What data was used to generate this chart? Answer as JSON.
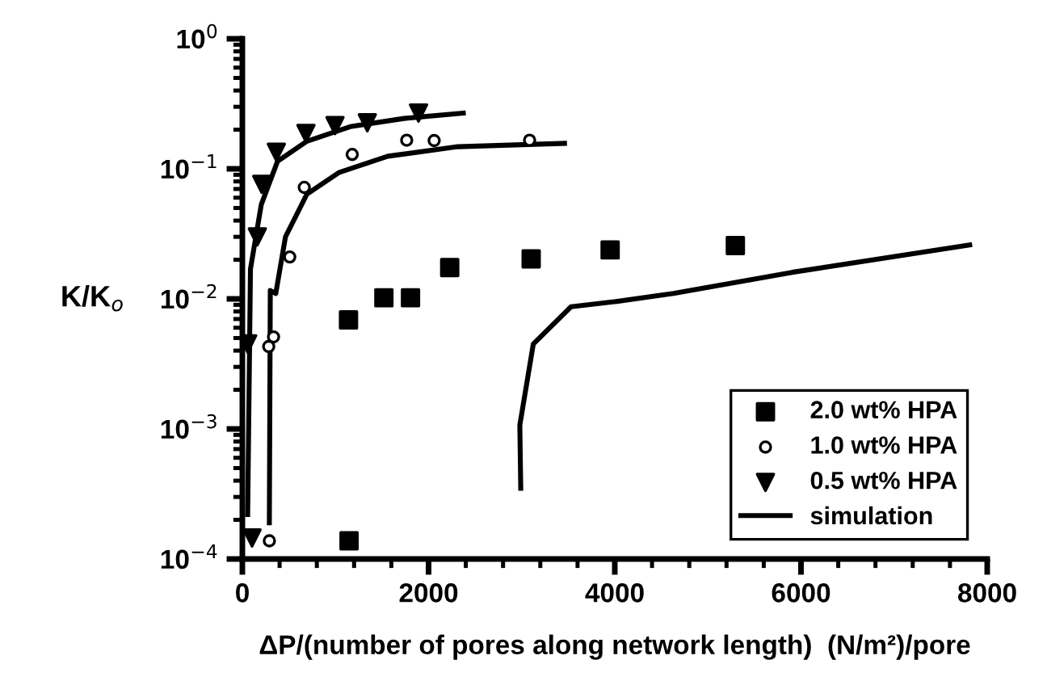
{
  "chart_data": {
    "type": "scatter",
    "xlabel": "ΔP/(number of pores along network length)  (N/m²)/pore",
    "ylabel": "K/K$_{o}$",
    "log": "y",
    "xlim": [
      0,
      8000
    ],
    "xticks": [
      0,
      2000,
      4000,
      6000,
      8000
    ],
    "ylim": [
      0.0001,
      1
    ],
    "yticks": [
      {
        "value": 0.0001,
        "label": "10$^{−4}$"
      },
      {
        "value": 0.001,
        "label": "10$^{−3}$"
      },
      {
        "value": 0.01,
        "label": "10$^{−2}$"
      },
      {
        "value": 0.1,
        "label": "10$^{−1}$"
      },
      {
        "value": 1,
        "label": "10$^{0}$"
      }
    ],
    "grid": false,
    "legend": "bottom right",
    "series": [
      {
        "name": "2.0 wt% HPA",
        "marker": "square",
        "color": "#000000",
        "x": [
          1146,
          1140,
          1520,
          1806,
          2227,
          3102,
          3950,
          5295
        ],
        "values": [
          0.000138,
          0.0069,
          0.0102,
          0.0102,
          0.0174,
          0.0203,
          0.0238,
          0.0257
        ]
      },
      {
        "name": "1.0 wt% HPA",
        "marker": "circle",
        "color": "#000000",
        "x": [
          290,
          283,
          335,
          509,
          665,
          1180,
          1765,
          2060,
          3085
        ],
        "values": [
          0.000138,
          0.0043,
          0.0051,
          0.021,
          0.072,
          0.129,
          0.166,
          0.165,
          0.166
        ]
      },
      {
        "name": "0.5 wt% HPA",
        "marker": "triangle",
        "color": "#000000",
        "x": [
          104,
          57,
          161,
          208,
          365,
          683,
          995,
          1342,
          1892
        ],
        "values": [
          0.000145,
          0.0045,
          0.03,
          0.076,
          0.134,
          0.187,
          0.215,
          0.226,
          0.268
        ]
      },
      {
        "name": "simulation",
        "type": "line",
        "color": "#000000",
        "x": [
          57,
          87,
          203,
          377,
          694,
          1158,
          1736,
          2373
        ],
        "values": [
          0.00022,
          0.017,
          0.053,
          0.114,
          0.163,
          0.211,
          0.244,
          0.268
        ]
      },
      {
        "type": "line",
        "color": "#000000",
        "x": [
          290,
          300,
          359,
          463,
          694,
          1042,
          1563,
          2315,
          3460
        ],
        "values": [
          0.00019,
          0.0116,
          0.011,
          0.03,
          0.064,
          0.094,
          0.125,
          0.148,
          0.157
        ]
      },
      {
        "type": "line",
        "color": "#000000",
        "x": [
          2990,
          2980,
          3125,
          3530,
          3993,
          4630,
          5903,
          7812
        ],
        "values": [
          0.00035,
          0.00107,
          0.0045,
          0.0087,
          0.0095,
          0.011,
          0.016,
          0.026
        ]
      }
    ]
  }
}
